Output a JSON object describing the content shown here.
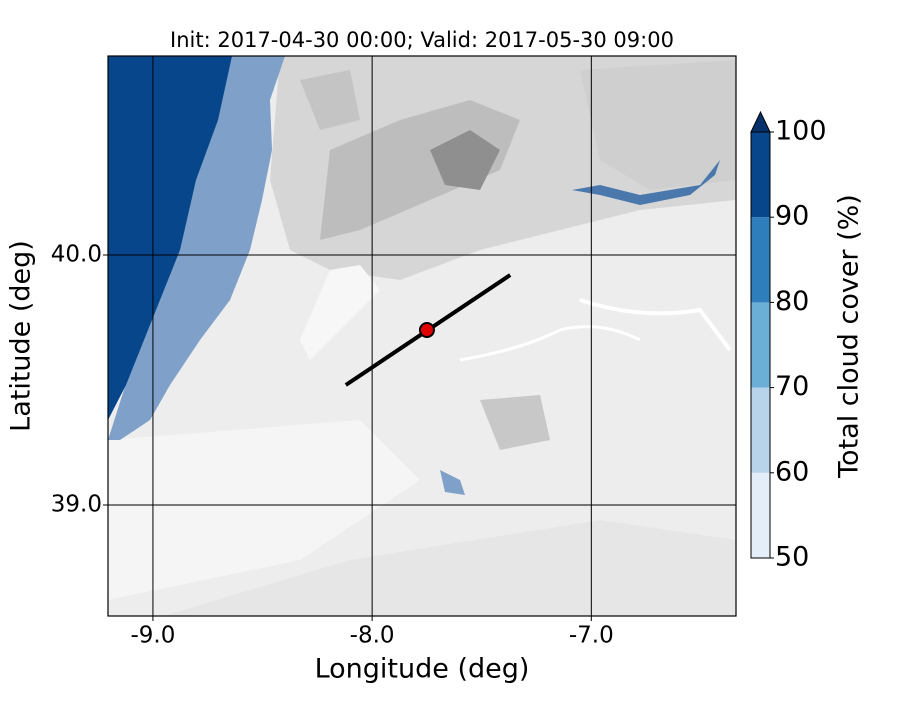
{
  "chart_data": {
    "type": "map",
    "title": "Init: 2017-04-30 00:00; Valid: 2017-05-30 09:00",
    "xlabel": "Longitude (deg)",
    "ylabel": "Latitude (deg)",
    "xlim": [
      -9.205,
      -6.34
    ],
    "ylim": [
      38.556,
      40.796
    ],
    "xticks": [
      {
        "value": -9,
        "label": "-9.0"
      },
      {
        "value": -8,
        "label": "-8.0"
      },
      {
        "value": -7,
        "label": "-7.0"
      }
    ],
    "yticks": [
      {
        "value": 39,
        "label": "39.0"
      },
      {
        "value": 40,
        "label": "40.0"
      }
    ],
    "grid": true,
    "colorbar": {
      "label": "Total cloud cover (%)",
      "levels": [
        50,
        60,
        70,
        80,
        90,
        100
      ],
      "colors": [
        "#e3eef8",
        "#b7d4ea",
        "#6baed6",
        "#2e7ebc",
        "#08468b"
      ],
      "extend_color": "#08306b"
    },
    "cross_section": {
      "x": [
        -8.12,
        -7.37
      ],
      "y": [
        39.48,
        39.92
      ],
      "color": "#000000"
    },
    "point": {
      "x": -7.75,
      "y": 39.7,
      "color": "#e00000"
    }
  }
}
